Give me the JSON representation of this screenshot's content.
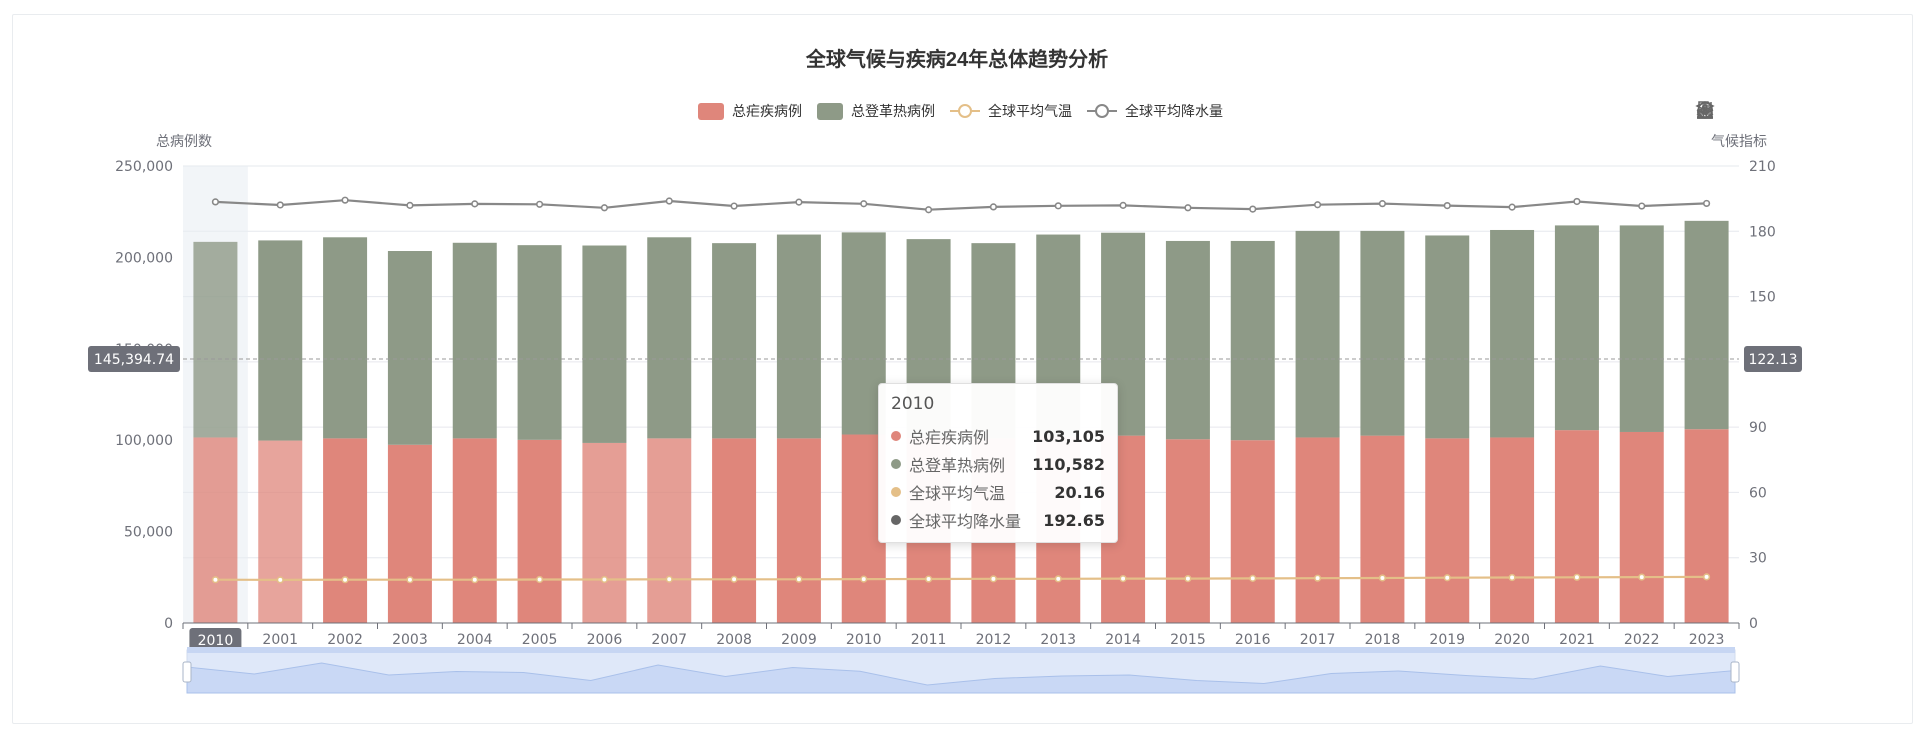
{
  "colors": {
    "malaria": "#df867b",
    "dengue": "#8e9a87",
    "temp": "#e4bf88",
    "precip": "#888888",
    "axis": "#6e7079",
    "grid": "#e6e8ee"
  },
  "toolbar_icons": [
    "download-icon",
    "data-view-icon",
    "restore-icon",
    "line-chart-icon",
    "bar-chart-icon",
    "stack-icon"
  ],
  "axis_pointer": {
    "x_label": "2010",
    "y_left_label": "145,394.74",
    "y_right_label": "122.13"
  },
  "tooltip": {
    "title": "2010",
    "rows": [
      {
        "name": "总疟疾病例",
        "value": "103,105",
        "color": "#df867b"
      },
      {
        "name": "总登革热病例",
        "value": "110,582",
        "color": "#8e9a87"
      },
      {
        "name": "全球平均气温",
        "value": "20.16",
        "color": "#e4bf88"
      },
      {
        "name": "全球平均降水量",
        "value": "192.65",
        "color": "#666666"
      }
    ]
  },
  "chart_data": {
    "type": "bar",
    "title": "全球气候与疾病24年总体趋势分析",
    "ylabel": "总病例数",
    "ylabel_right": "气候指标",
    "ylim": [
      0,
      250000
    ],
    "ylim_right": [
      0,
      210
    ],
    "yticks_left": [
      "250,000",
      "200,000",
      "150,000",
      "100,000",
      "50,000",
      "0"
    ],
    "yticks_right": [
      "210",
      "180",
      "150",
      "120",
      "90",
      "60",
      "30",
      "0"
    ],
    "categories": [
      "2010",
      "2001",
      "2002",
      "2003",
      "2004",
      "2005",
      "2006",
      "2007",
      "2008",
      "2009",
      "2010",
      "2011",
      "2012",
      "2013",
      "2014",
      "2015",
      "2016",
      "2017",
      "2018",
      "2019",
      "2020",
      "2021",
      "2022",
      "2023"
    ],
    "legend_position": "top-center",
    "series": [
      {
        "name": "总疟疾病例",
        "type": "bar",
        "stack": "cases",
        "values": [
          101500,
          99800,
          101000,
          97500,
          101000,
          100200,
          98500,
          101000,
          101000,
          101000,
          103105,
          101500,
          101000,
          102000,
          102500,
          100500,
          100000,
          101500,
          102500,
          101000,
          101500,
          105500,
          104500,
          106000
        ]
      },
      {
        "name": "总登革热病例",
        "type": "bar",
        "stack": "cases",
        "values": [
          107000,
          109500,
          110000,
          106000,
          107000,
          106500,
          108000,
          110000,
          106800,
          111500,
          110582,
          108500,
          106800,
          110500,
          111000,
          108500,
          109000,
          113000,
          112000,
          111000,
          113500,
          112000,
          113000,
          114000
        ]
      },
      {
        "name": "全球平均气温",
        "type": "line",
        "axis": "right",
        "values": [
          19.9,
          19.8,
          19.9,
          19.9,
          19.9,
          20.0,
          20.0,
          20.1,
          20.1,
          20.1,
          20.16,
          20.2,
          20.3,
          20.3,
          20.4,
          20.4,
          20.5,
          20.6,
          20.7,
          20.8,
          20.9,
          21.0,
          21.1,
          21.2
        ]
      },
      {
        "name": "全球平均降水量",
        "type": "line",
        "axis": "right",
        "values": [
          193.5,
          192.1,
          194.3,
          191.9,
          192.6,
          192.4,
          190.8,
          193.9,
          191.6,
          193.4,
          192.65,
          189.9,
          191.2,
          191.7,
          191.9,
          190.8,
          190.2,
          192.2,
          192.7,
          191.8,
          191.1,
          193.7,
          191.6,
          192.8
        ]
      }
    ],
    "datazoom": {
      "range": [
        0,
        100
      ]
    }
  }
}
